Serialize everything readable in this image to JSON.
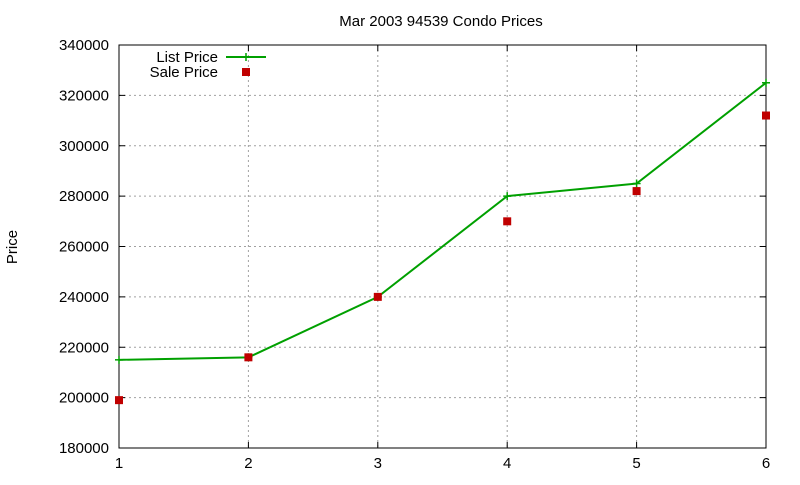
{
  "chart_data": {
    "type": "line",
    "title": "Mar 2003 94539 Condo Prices",
    "xlabel": "",
    "ylabel": "Price",
    "xlim": [
      1,
      6
    ],
    "ylim": [
      180000,
      340000
    ],
    "x_ticks": [
      1,
      2,
      3,
      4,
      5,
      6
    ],
    "y_ticks": [
      180000,
      200000,
      220000,
      240000,
      260000,
      280000,
      300000,
      320000,
      340000
    ],
    "grid": true,
    "legend_position": "top-left",
    "series": [
      {
        "name": "List Price",
        "kind": "line-points",
        "marker": "plus",
        "color": "#00a000",
        "x": [
          1,
          2,
          3,
          4,
          5,
          6
        ],
        "values": [
          215000,
          216000,
          240000,
          280000,
          285000,
          325000
        ]
      },
      {
        "name": "Sale Price",
        "kind": "points",
        "marker": "square",
        "color": "#c00000",
        "x": [
          1,
          2,
          3,
          4,
          5,
          6
        ],
        "values": [
          199000,
          216000,
          240000,
          270000,
          282000,
          312000
        ]
      }
    ]
  }
}
